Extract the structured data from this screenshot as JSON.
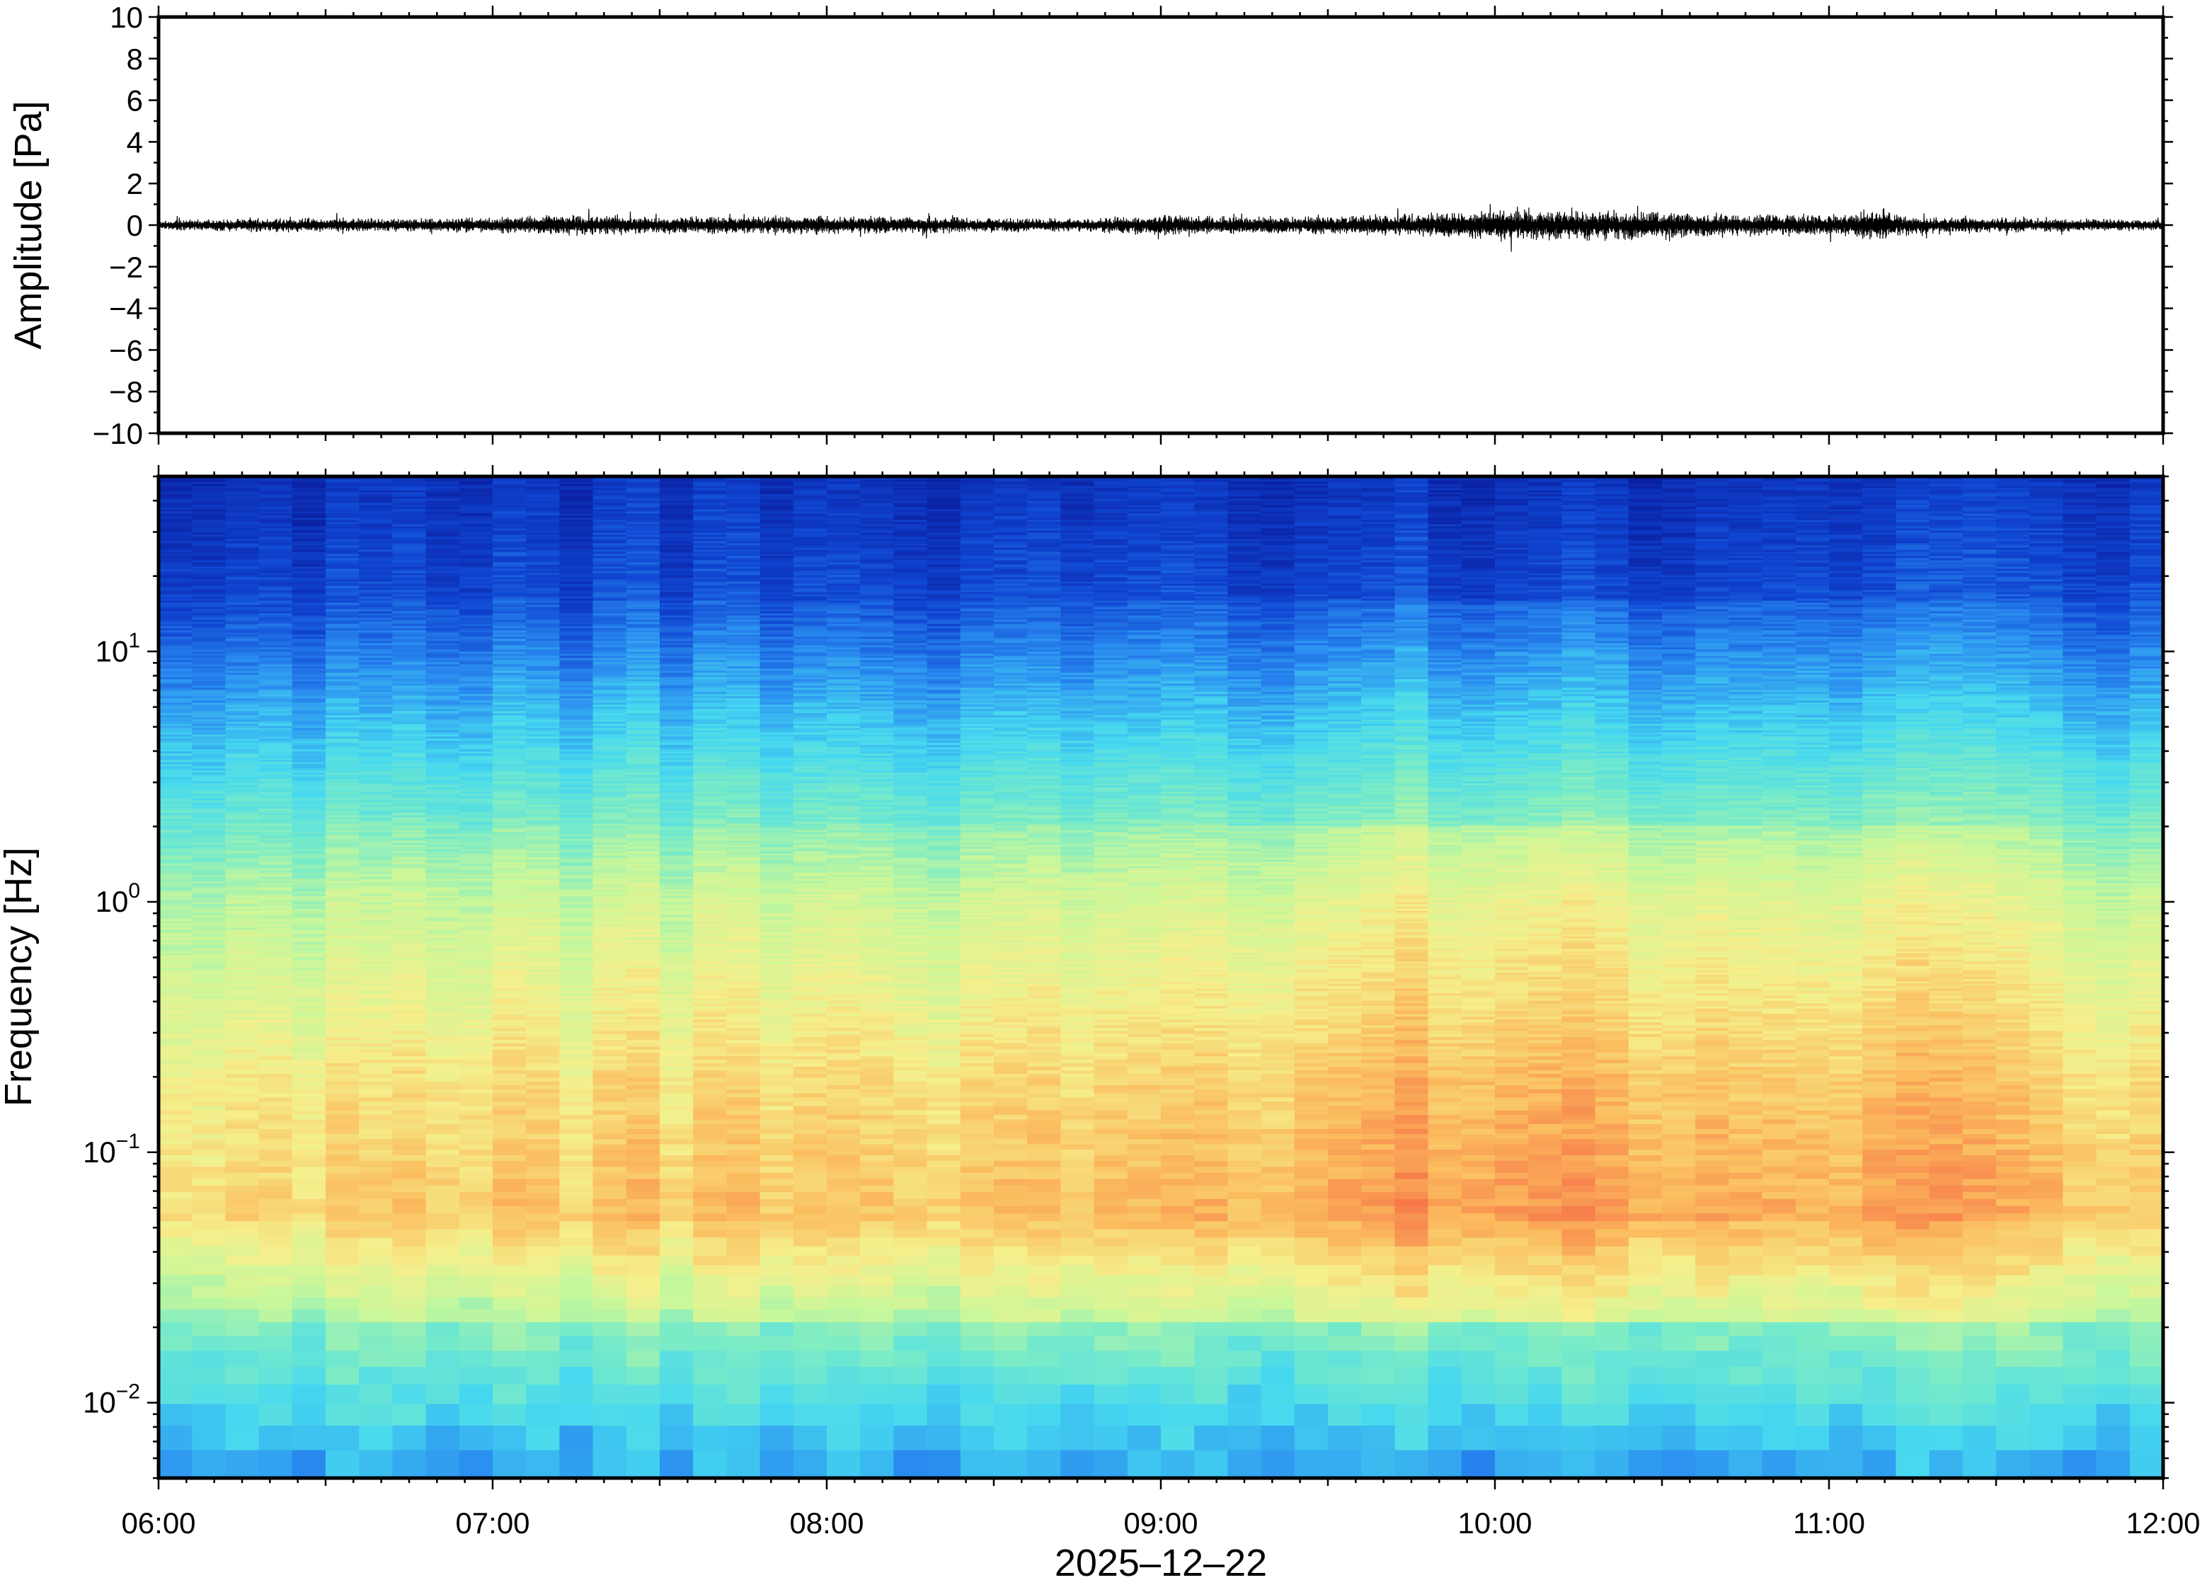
{
  "chart_data": [
    {
      "type": "line",
      "title": "",
      "xlabel": "",
      "ylabel": "Amplitude [Pa]",
      "ylim": [
        -10,
        10
      ],
      "yticks": [
        -10,
        -8,
        -6,
        -4,
        -2,
        0,
        2,
        4,
        6,
        8,
        10
      ],
      "ytick_labels": [
        "−10",
        "−8",
        "−6",
        "−4",
        "−2",
        "0",
        "2",
        "4",
        "6",
        "8",
        "10"
      ],
      "xlim": [
        "06:00",
        "12:00"
      ],
      "series": [
        {
          "color": "#000000",
          "envelope_x": [
            "06:00",
            "06:15",
            "06:30",
            "06:45",
            "07:00",
            "07:15",
            "07:30",
            "07:45",
            "08:00",
            "08:15",
            "08:30",
            "08:45",
            "09:00",
            "09:15",
            "09:30",
            "09:45",
            "10:00",
            "10:15",
            "10:30",
            "10:45",
            "11:00",
            "11:10",
            "11:15",
            "11:30",
            "11:45",
            "12:00"
          ],
          "envelope_amplitude": [
            0.3,
            0.35,
            0.4,
            0.35,
            0.45,
            0.55,
            0.45,
            0.5,
            0.5,
            0.45,
            0.4,
            0.35,
            0.55,
            0.45,
            0.5,
            0.6,
            0.85,
            0.8,
            0.75,
            0.6,
            0.55,
            0.9,
            0.5,
            0.4,
            0.35,
            0.3
          ]
        }
      ],
      "grid": false,
      "legend": "none"
    },
    {
      "type": "heatmap",
      "title": "",
      "xlabel": "2025‒12‒22",
      "ylabel": "Frequency [Hz]",
      "y_scale": "log",
      "ylim": [
        0.005,
        50
      ],
      "yticks": [
        0.01,
        0.1,
        1,
        10
      ],
      "ytick_labels": [
        {
          "base": "10",
          "exp": "−2"
        },
        {
          "base": "10",
          "exp": "−1"
        },
        {
          "base": "10",
          "exp": "0"
        },
        {
          "base": "10",
          "exp": "1"
        }
      ],
      "xlim": [
        "06:00",
        "12:00"
      ],
      "xtick_labels": [
        "06:00",
        "07:00",
        "08:00",
        "09:00",
        "10:00",
        "11:00",
        "12:00"
      ],
      "colormap": "jet",
      "colormap_stops": [
        "#0a1ea0",
        "#1046d2",
        "#2a8cf0",
        "#46d8f0",
        "#78ebc8",
        "#c8f79a",
        "#f5ef8c",
        "#fbbc5e",
        "#f77a4a",
        "#e64040"
      ],
      "time_columns": 60,
      "activity_by_hour": [
        {
          "hour": "06:00",
          "level": 0.0
        },
        {
          "hour": "07:00",
          "level": 0.25
        },
        {
          "hour": "08:00",
          "level": 0.3
        },
        {
          "hour": "09:00",
          "level": 0.4
        },
        {
          "hour": "09:30",
          "level": 0.75
        },
        {
          "hour": "10:00",
          "level": 1.0
        },
        {
          "hour": "10:30",
          "level": 0.85
        },
        {
          "hour": "11:00",
          "level": 0.5
        },
        {
          "hour": "11:10",
          "level": 0.85
        },
        {
          "hour": "12:00",
          "level": 0.1
        }
      ],
      "grid": false,
      "legend": "none"
    }
  ]
}
